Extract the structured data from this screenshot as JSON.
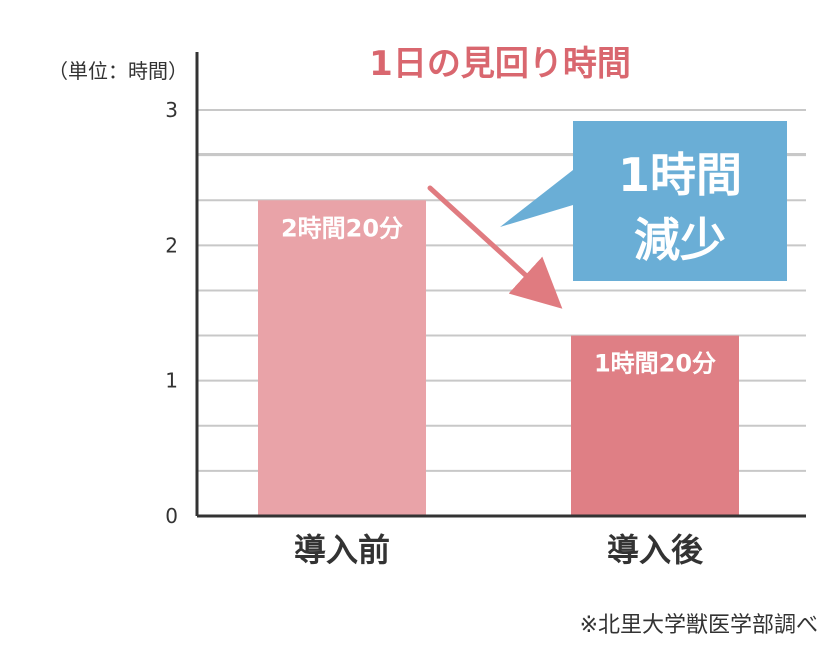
{
  "chart_data": {
    "type": "bar",
    "title": "1日の見回り時間",
    "unit_label": "（単位：時間）",
    "categories": [
      "導入前",
      "導入後"
    ],
    "values": [
      2.333,
      1.333
    ],
    "data_labels": [
      "2時間20分",
      "1時間20分"
    ],
    "ylim": [
      0,
      3
    ],
    "yticks": [
      "0",
      "1",
      "2",
      "3"
    ],
    "grid": true,
    "xlabel": "",
    "ylabel": "",
    "annotation": {
      "line1": "1時間",
      "line2": "減少"
    },
    "note": "※北里大学獣医学部調べ"
  },
  "colors": {
    "title": "#d9676f",
    "bar_before": "#e9a3a8",
    "bar_after": "#df7f85",
    "arrow": "#e07b80",
    "callout": "#6aaed6",
    "grid": "#c8c8c8",
    "axis": "#333333"
  }
}
